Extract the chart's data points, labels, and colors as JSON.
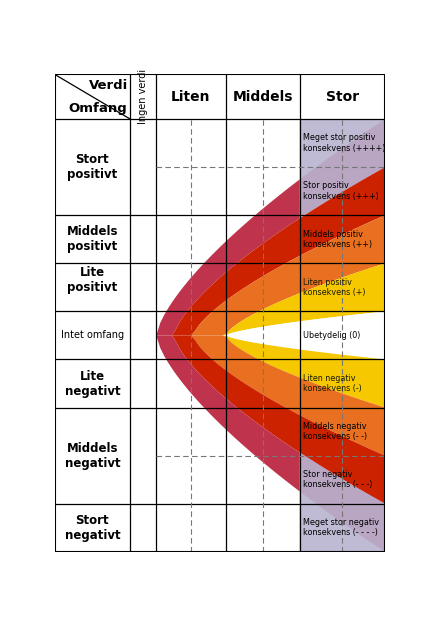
{
  "consequence_labels": [
    "Meget stor positiv\nkonsekvens (++++)",
    "Stor positiv\nkonsekvens (+++)",
    "Middels positiv\nkonsekvens (++)",
    "Liten positiv\nkonsekvens (+)",
    "Ubetydelig (0)",
    "Liten negativ\nkonsekvens (-)",
    "Middels negativ\nkonsekvens (- -)",
    "Stor negativ\nkonsekvens (- - -)",
    "Meget stor negativ\nkonsekvens (- - - -)"
  ],
  "band_colors": [
    "#c0334d",
    "#cc2200",
    "#e87020",
    "#f5c800",
    "#ffffff",
    "#f5c800",
    "#e87020",
    "#cc2200",
    "#c0334d"
  ],
  "purple_color": "#b8b4d0",
  "bg_color": "#ffffff"
}
